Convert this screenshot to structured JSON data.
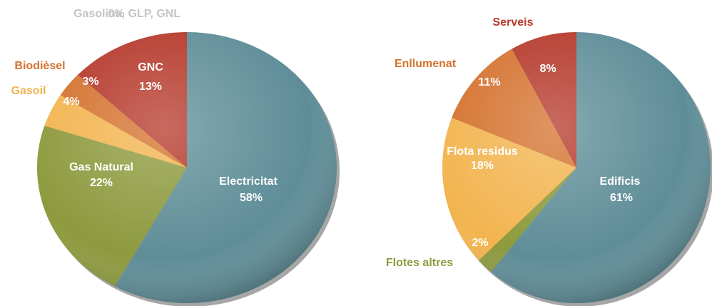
{
  "chart_data": [
    {
      "type": "pie",
      "categories": [
        "Electricitat",
        "Gas Natural",
        "Gasoil",
        "Biodièsel",
        "GNC",
        "Gasolina, GLP, GNL"
      ],
      "values": [
        58,
        22,
        4,
        3,
        13,
        0
      ],
      "value_labels": [
        "58%",
        "22%",
        "4%",
        "3%",
        "13%",
        "0%"
      ],
      "colors": [
        "#5e8d98",
        "#8d9a3d",
        "#f2b44f",
        "#d4722e",
        "#b5382a",
        "#cccccc"
      ]
    },
    {
      "type": "pie",
      "categories": [
        "Edificis",
        "Flotes altres",
        "Flota residus",
        "Enllumenat",
        "Serveis"
      ],
      "values": [
        61,
        2,
        18,
        11,
        8
      ],
      "value_labels": [
        "61%",
        "2%",
        "18%",
        "11%",
        "8%"
      ],
      "colors": [
        "#5e8d98",
        "#8d9a3d",
        "#f2b44f",
        "#d4722e",
        "#b5382a"
      ]
    }
  ]
}
